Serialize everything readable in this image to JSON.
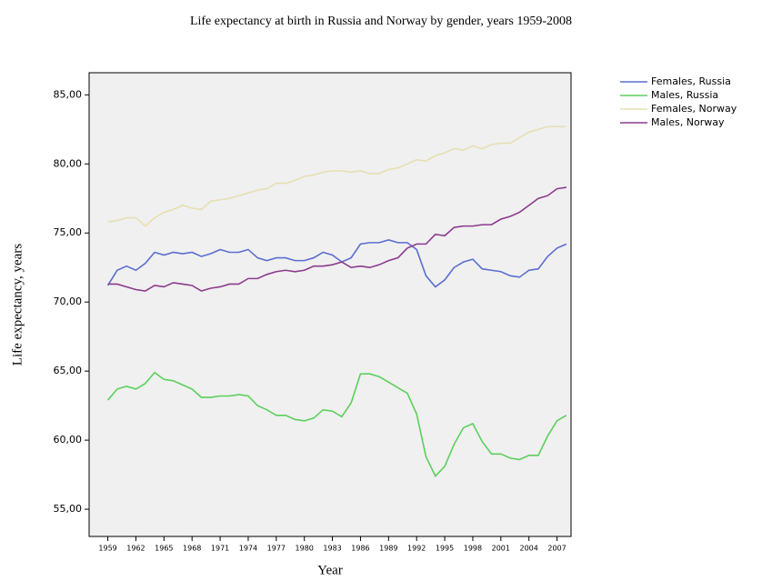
{
  "chart_data": {
    "type": "line",
    "title": "Life expectancy at birth in Russia and Norway by gender, years 1959-2008",
    "x_label": "Year",
    "y_label": "Life expectancy, years",
    "x": [
      1959,
      1960,
      1961,
      1962,
      1963,
      1964,
      1965,
      1966,
      1967,
      1968,
      1969,
      1970,
      1971,
      1972,
      1973,
      1974,
      1975,
      1976,
      1977,
      1978,
      1979,
      1980,
      1981,
      1982,
      1983,
      1984,
      1985,
      1986,
      1987,
      1988,
      1989,
      1990,
      1991,
      1992,
      1993,
      1994,
      1995,
      1996,
      1997,
      1998,
      1999,
      2000,
      2001,
      2002,
      2003,
      2004,
      2005,
      2006,
      2007,
      2008
    ],
    "series": [
      {
        "name": "Females, Russia",
        "color": "#5b6ed0",
        "values": [
          71.2,
          72.3,
          72.6,
          72.3,
          72.8,
          73.6,
          73.4,
          73.6,
          73.5,
          73.6,
          73.3,
          73.5,
          73.8,
          73.6,
          73.6,
          73.8,
          73.2,
          73.0,
          73.2,
          73.2,
          73.0,
          73.0,
          73.2,
          73.6,
          73.4,
          72.9,
          73.2,
          74.2,
          74.3,
          74.3,
          74.5,
          74.3,
          74.3,
          73.8,
          71.9,
          71.1,
          71.6,
          72.5,
          72.9,
          73.1,
          72.4,
          72.3,
          72.2,
          71.9,
          71.8,
          72.3,
          72.4,
          73.3,
          73.9,
          74.2
        ]
      },
      {
        "name": "Males, Russia",
        "color": "#5ccf5c",
        "values": [
          62.9,
          63.7,
          63.9,
          63.7,
          64.1,
          64.9,
          64.4,
          64.3,
          64.0,
          63.7,
          63.1,
          63.1,
          63.2,
          63.2,
          63.3,
          63.2,
          62.5,
          62.2,
          61.8,
          61.8,
          61.5,
          61.4,
          61.6,
          62.2,
          62.1,
          61.7,
          62.7,
          64.8,
          64.8,
          64.6,
          64.2,
          63.8,
          63.4,
          61.9,
          58.8,
          57.4,
          58.1,
          59.7,
          60.9,
          61.2,
          59.9,
          59.0,
          59.0,
          58.7,
          58.6,
          58.9,
          58.9,
          60.3,
          61.4,
          61.8
        ]
      },
      {
        "name": "Females, Norway",
        "color": "#e6dfb3",
        "values": [
          75.8,
          75.9,
          76.1,
          76.1,
          75.5,
          76.1,
          76.5,
          76.7,
          77.0,
          76.8,
          76.7,
          77.3,
          77.4,
          77.5,
          77.7,
          77.9,
          78.1,
          78.2,
          78.6,
          78.6,
          78.8,
          79.1,
          79.2,
          79.4,
          79.5,
          79.5,
          79.4,
          79.5,
          79.3,
          79.3,
          79.6,
          79.7,
          80.0,
          80.3,
          80.2,
          80.6,
          80.8,
          81.1,
          81.0,
          81.3,
          81.1,
          81.4,
          81.5,
          81.5,
          81.9,
          82.3,
          82.5,
          82.7,
          82.7,
          82.7
        ]
      },
      {
        "name": "Males, Norway",
        "color": "#8c3a8e",
        "values": [
          71.3,
          71.3,
          71.1,
          70.9,
          70.8,
          71.2,
          71.1,
          71.4,
          71.3,
          71.2,
          70.8,
          71.0,
          71.1,
          71.3,
          71.3,
          71.7,
          71.7,
          72.0,
          72.2,
          72.3,
          72.2,
          72.3,
          72.6,
          72.6,
          72.7,
          72.9,
          72.5,
          72.6,
          72.5,
          72.7,
          73.0,
          73.2,
          73.9,
          74.2,
          74.2,
          74.9,
          74.8,
          75.4,
          75.5,
          75.5,
          75.6,
          75.6,
          76.0,
          76.2,
          76.5,
          77.0,
          77.5,
          77.7,
          78.2,
          78.3
        ]
      }
    ],
    "xlim": [
      1957,
      2008.5
    ],
    "xticks": [
      1959,
      1962,
      1965,
      1968,
      1971,
      1974,
      1977,
      1980,
      1983,
      1986,
      1989,
      1992,
      1995,
      1998,
      2001,
      2004,
      2007
    ],
    "ylim": [
      53.03,
      86.6
    ],
    "yticks": [
      {
        "value": 55,
        "label": "55,00"
      },
      {
        "value": 60,
        "label": "60,00"
      },
      {
        "value": 65,
        "label": "65,00"
      },
      {
        "value": 70,
        "label": "70,00"
      },
      {
        "value": 75,
        "label": "75,00"
      },
      {
        "value": 80,
        "label": "80,00"
      },
      {
        "value": 85,
        "label": "85,00"
      }
    ],
    "grid": false,
    "legend": "right",
    "background": "#f0f0f0"
  }
}
